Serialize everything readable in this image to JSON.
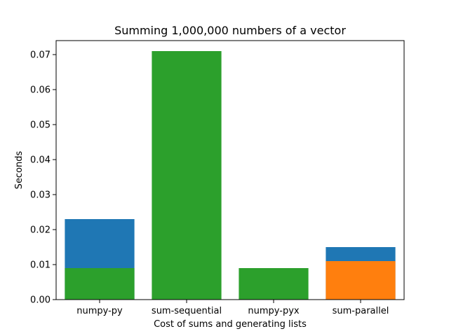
{
  "chart_data": {
    "type": "bar",
    "title": "Summing 1,000,000 numbers of a vector",
    "xlabel": "Cost of sums and generating lists",
    "ylabel": "Seconds",
    "categories": [
      "numpy-py",
      "sum-sequential",
      "numpy-pyx",
      "sum-parallel"
    ],
    "ylim": [
      0,
      0.074
    ],
    "yticks": [
      "0.00",
      "0.01",
      "0.02",
      "0.03",
      "0.04",
      "0.05",
      "0.06",
      "0.07"
    ],
    "grid": false,
    "legend": "none",
    "bars": [
      {
        "category": "numpy-py",
        "value": 0.023,
        "color": "#1f77b4"
      },
      {
        "category": "numpy-py",
        "value": 0.009,
        "color": "#2ca02c"
      },
      {
        "category": "sum-sequential",
        "value": 0.071,
        "color": "#2ca02c"
      },
      {
        "category": "numpy-pyx",
        "value": 0.009,
        "color": "#2ca02c"
      },
      {
        "category": "sum-parallel",
        "value": 0.015,
        "color": "#1f77b4"
      },
      {
        "category": "sum-parallel",
        "value": 0.011,
        "color": "#ff7f0e"
      }
    ]
  }
}
